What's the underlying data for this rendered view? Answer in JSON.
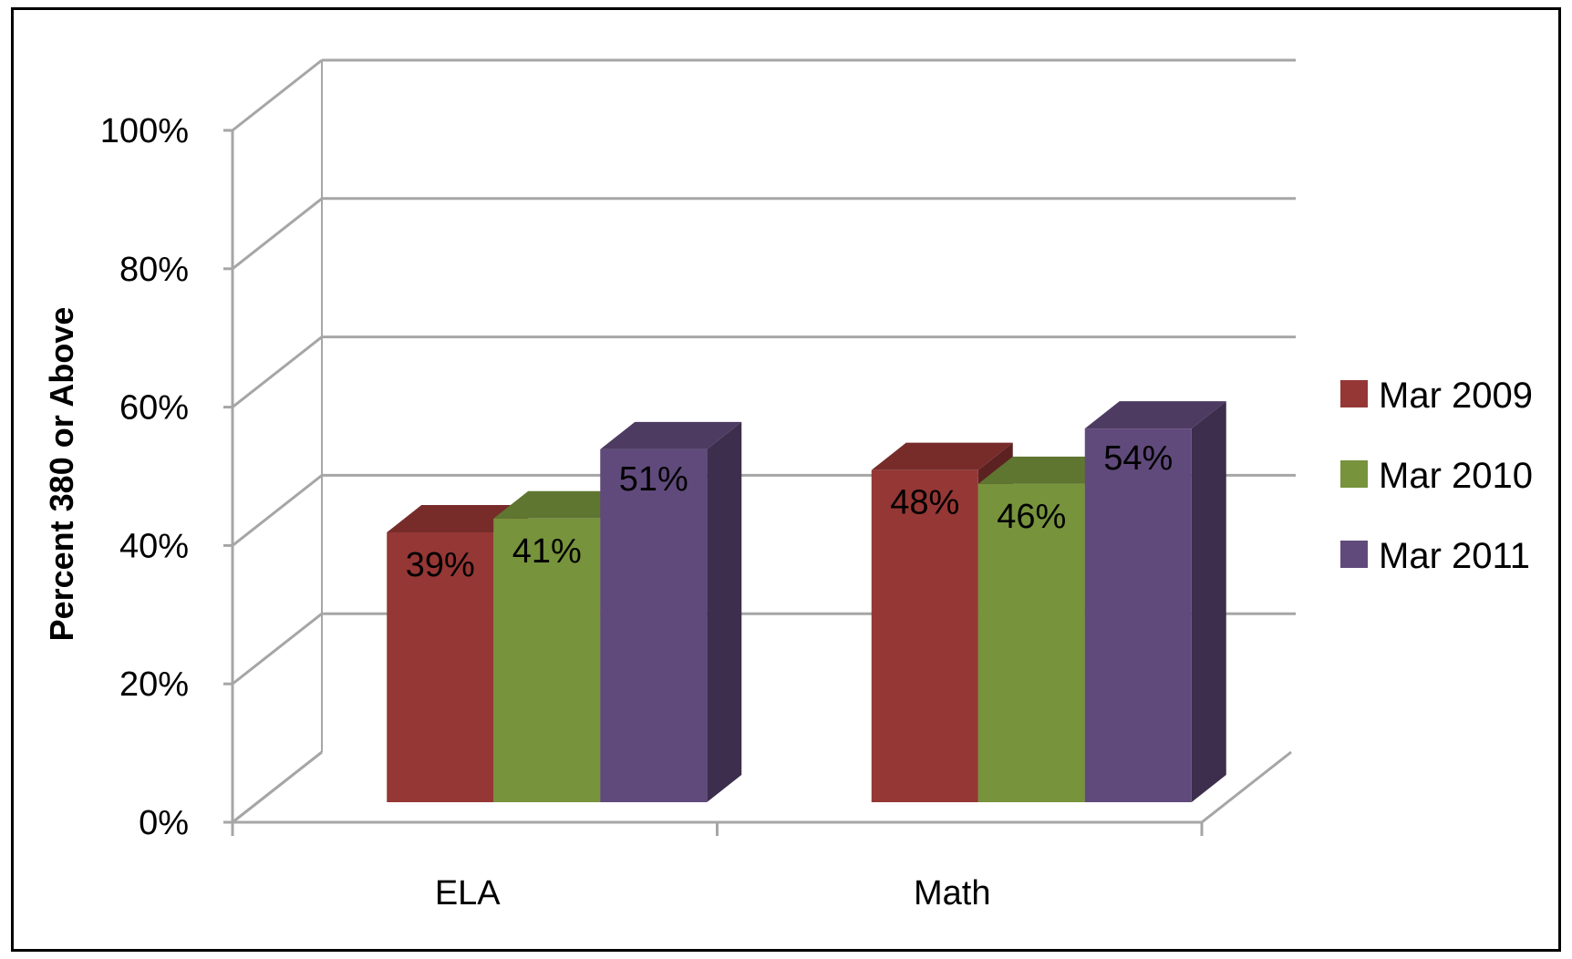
{
  "chart_data": {
    "type": "bar",
    "title": "",
    "xlabel": "",
    "ylabel": "Percent 380 or Above",
    "ylim": [
      0,
      100
    ],
    "yticks": [
      "0%",
      "20%",
      "40%",
      "60%",
      "80%",
      "100%"
    ],
    "grid": true,
    "legend_position": "right",
    "categories": [
      "ELA",
      "Math"
    ],
    "series": [
      {
        "name": "Mar 2009",
        "values": [
          39,
          48
        ],
        "labels": [
          "39%",
          "48%"
        ],
        "color": "#953735"
      },
      {
        "name": "Mar 2010",
        "values": [
          41,
          46
        ],
        "labels": [
          "41%",
          "46%"
        ],
        "color": "#77933c"
      },
      {
        "name": "Mar 2011",
        "values": [
          51,
          54
        ],
        "labels": [
          "51%",
          "54%"
        ],
        "color": "#604a7b"
      }
    ]
  }
}
